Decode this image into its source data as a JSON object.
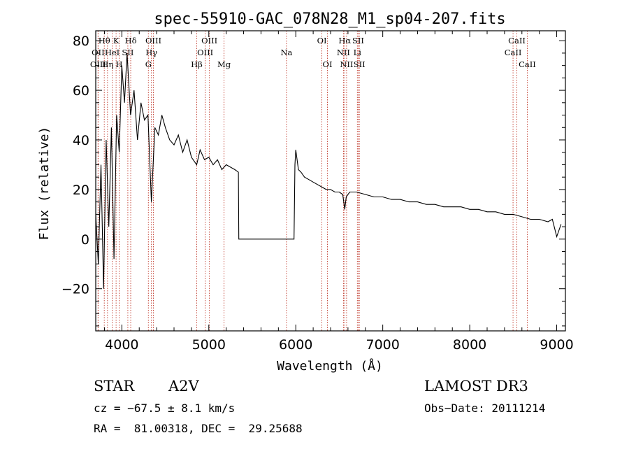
{
  "chart_data": {
    "type": "line",
    "title": "spec-55910-GAC_078N28_M1_sp04-207.fits",
    "xlabel": "Wavelength (Å)",
    "ylabel": "Flux (relative)",
    "xlim": [
      3700,
      9100
    ],
    "ylim": [
      -37,
      84
    ],
    "xticks": [
      4000,
      5000,
      6000,
      7000,
      8000,
      9000
    ],
    "xtick_labels": [
      "4000",
      "5000",
      "6000",
      "7000",
      "8000",
      "9000"
    ],
    "yticks": [
      -20,
      0,
      20,
      40,
      60,
      80
    ],
    "ytick_labels": [
      "−20",
      "0",
      "20",
      "40",
      "60",
      "80"
    ],
    "series": [
      {
        "name": "flux",
        "x": [
          3700,
          3730,
          3760,
          3790,
          3820,
          3850,
          3880,
          3910,
          3940,
          3970,
          4000,
          4030,
          4060,
          4100,
          4140,
          4180,
          4220,
          4260,
          4300,
          4340,
          4380,
          4420,
          4460,
          4500,
          4550,
          4600,
          4650,
          4700,
          4750,
          4800,
          4860,
          4900,
          4950,
          5000,
          5050,
          5100,
          5150,
          5200,
          5250,
          5300,
          5340,
          5345,
          5400,
          5500,
          5600,
          5700,
          5800,
          5900,
          5980,
          5990,
          6000,
          6030,
          6060,
          6100,
          6150,
          6200,
          6250,
          6300,
          6350,
          6400,
          6450,
          6500,
          6540,
          6563,
          6580,
          6620,
          6700,
          6800,
          6900,
          7000,
          7100,
          7200,
          7300,
          7400,
          7500,
          7600,
          7700,
          7800,
          7900,
          8000,
          8100,
          8200,
          8300,
          8400,
          8500,
          8600,
          8700,
          8800,
          8900,
          8950,
          9000,
          9050
        ],
        "y": [
          10,
          -10,
          30,
          -20,
          40,
          5,
          45,
          -8,
          50,
          35,
          70,
          55,
          75,
          50,
          60,
          40,
          55,
          48,
          50,
          15,
          45,
          42,
          50,
          45,
          40,
          38,
          42,
          35,
          40,
          33,
          30,
          36,
          32,
          33,
          30,
          32,
          28,
          30,
          29,
          28,
          27,
          0,
          0,
          0,
          0,
          0,
          0,
          0,
          0,
          30,
          36,
          28,
          27,
          25,
          24,
          23,
          22,
          21,
          20,
          20,
          19,
          19,
          18,
          12,
          17,
          19,
          19,
          18,
          17,
          17,
          16,
          16,
          15,
          15,
          14,
          14,
          13,
          13,
          13,
          12,
          12,
          11,
          11,
          10,
          10,
          9,
          8,
          8,
          7,
          8,
          1,
          6
        ]
      }
    ],
    "spectral_lines": [
      {
        "label": "Hθ",
        "wavelength": 3798,
        "row": 0
      },
      {
        "label": "OII",
        "wavelength": 3727,
        "row": 1
      },
      {
        "label": "OIII",
        "wavelength": 3727,
        "row": 2
      },
      {
        "label": "Hη",
        "wavelength": 3835,
        "row": 2
      },
      {
        "label": "HeI",
        "wavelength": 3889,
        "row": 1
      },
      {
        "label": "K",
        "wavelength": 3934,
        "row": 0
      },
      {
        "label": "H",
        "wavelength": 3969,
        "row": 2
      },
      {
        "label": "SII",
        "wavelength": 4069,
        "row": 1
      },
      {
        "label": "Hδ",
        "wavelength": 4102,
        "row": 0
      },
      {
        "label": "OIII",
        "wavelength": 4363,
        "row": 0
      },
      {
        "label": "Hγ",
        "wavelength": 4340,
        "row": 1
      },
      {
        "label": "G",
        "wavelength": 4305,
        "row": 2
      },
      {
        "label": "Hβ",
        "wavelength": 4861,
        "row": 2
      },
      {
        "label": "OIII",
        "wavelength": 5007,
        "row": 0
      },
      {
        "label": "OIII",
        "wavelength": 4959,
        "row": 1
      },
      {
        "label": "Mg",
        "wavelength": 5175,
        "row": 2
      },
      {
        "label": "Na",
        "wavelength": 5893,
        "row": 1
      },
      {
        "label": "OI",
        "wavelength": 6300,
        "row": 0
      },
      {
        "label": "OI",
        "wavelength": 6364,
        "row": 2
      },
      {
        "label": "Hα",
        "wavelength": 6563,
        "row": 0
      },
      {
        "label": "SII",
        "wavelength": 6717,
        "row": 0
      },
      {
        "label": "NII",
        "wavelength": 6548,
        "row": 1
      },
      {
        "label": "Li",
        "wavelength": 6708,
        "row": 1
      },
      {
        "label": "NII",
        "wavelength": 6584,
        "row": 2
      },
      {
        "label": "SII",
        "wavelength": 6731,
        "row": 2
      },
      {
        "label": "CaII",
        "wavelength": 8542,
        "row": 0
      },
      {
        "label": "CaII",
        "wavelength": 8498,
        "row": 1
      },
      {
        "label": "CaII",
        "wavelength": 8662,
        "row": 2
      }
    ]
  },
  "info": {
    "object_class": "STAR",
    "subclass": "A2V",
    "survey": "LAMOST DR3",
    "cz": "cz = −67.5 ± 8.1 km/s",
    "obs_date": "Obs−Date: 20111214",
    "coords": "RA =  81.00318, DEC =  29.25688"
  },
  "colors": {
    "line_marker": "#c0392b",
    "spectrum": "#000000"
  }
}
